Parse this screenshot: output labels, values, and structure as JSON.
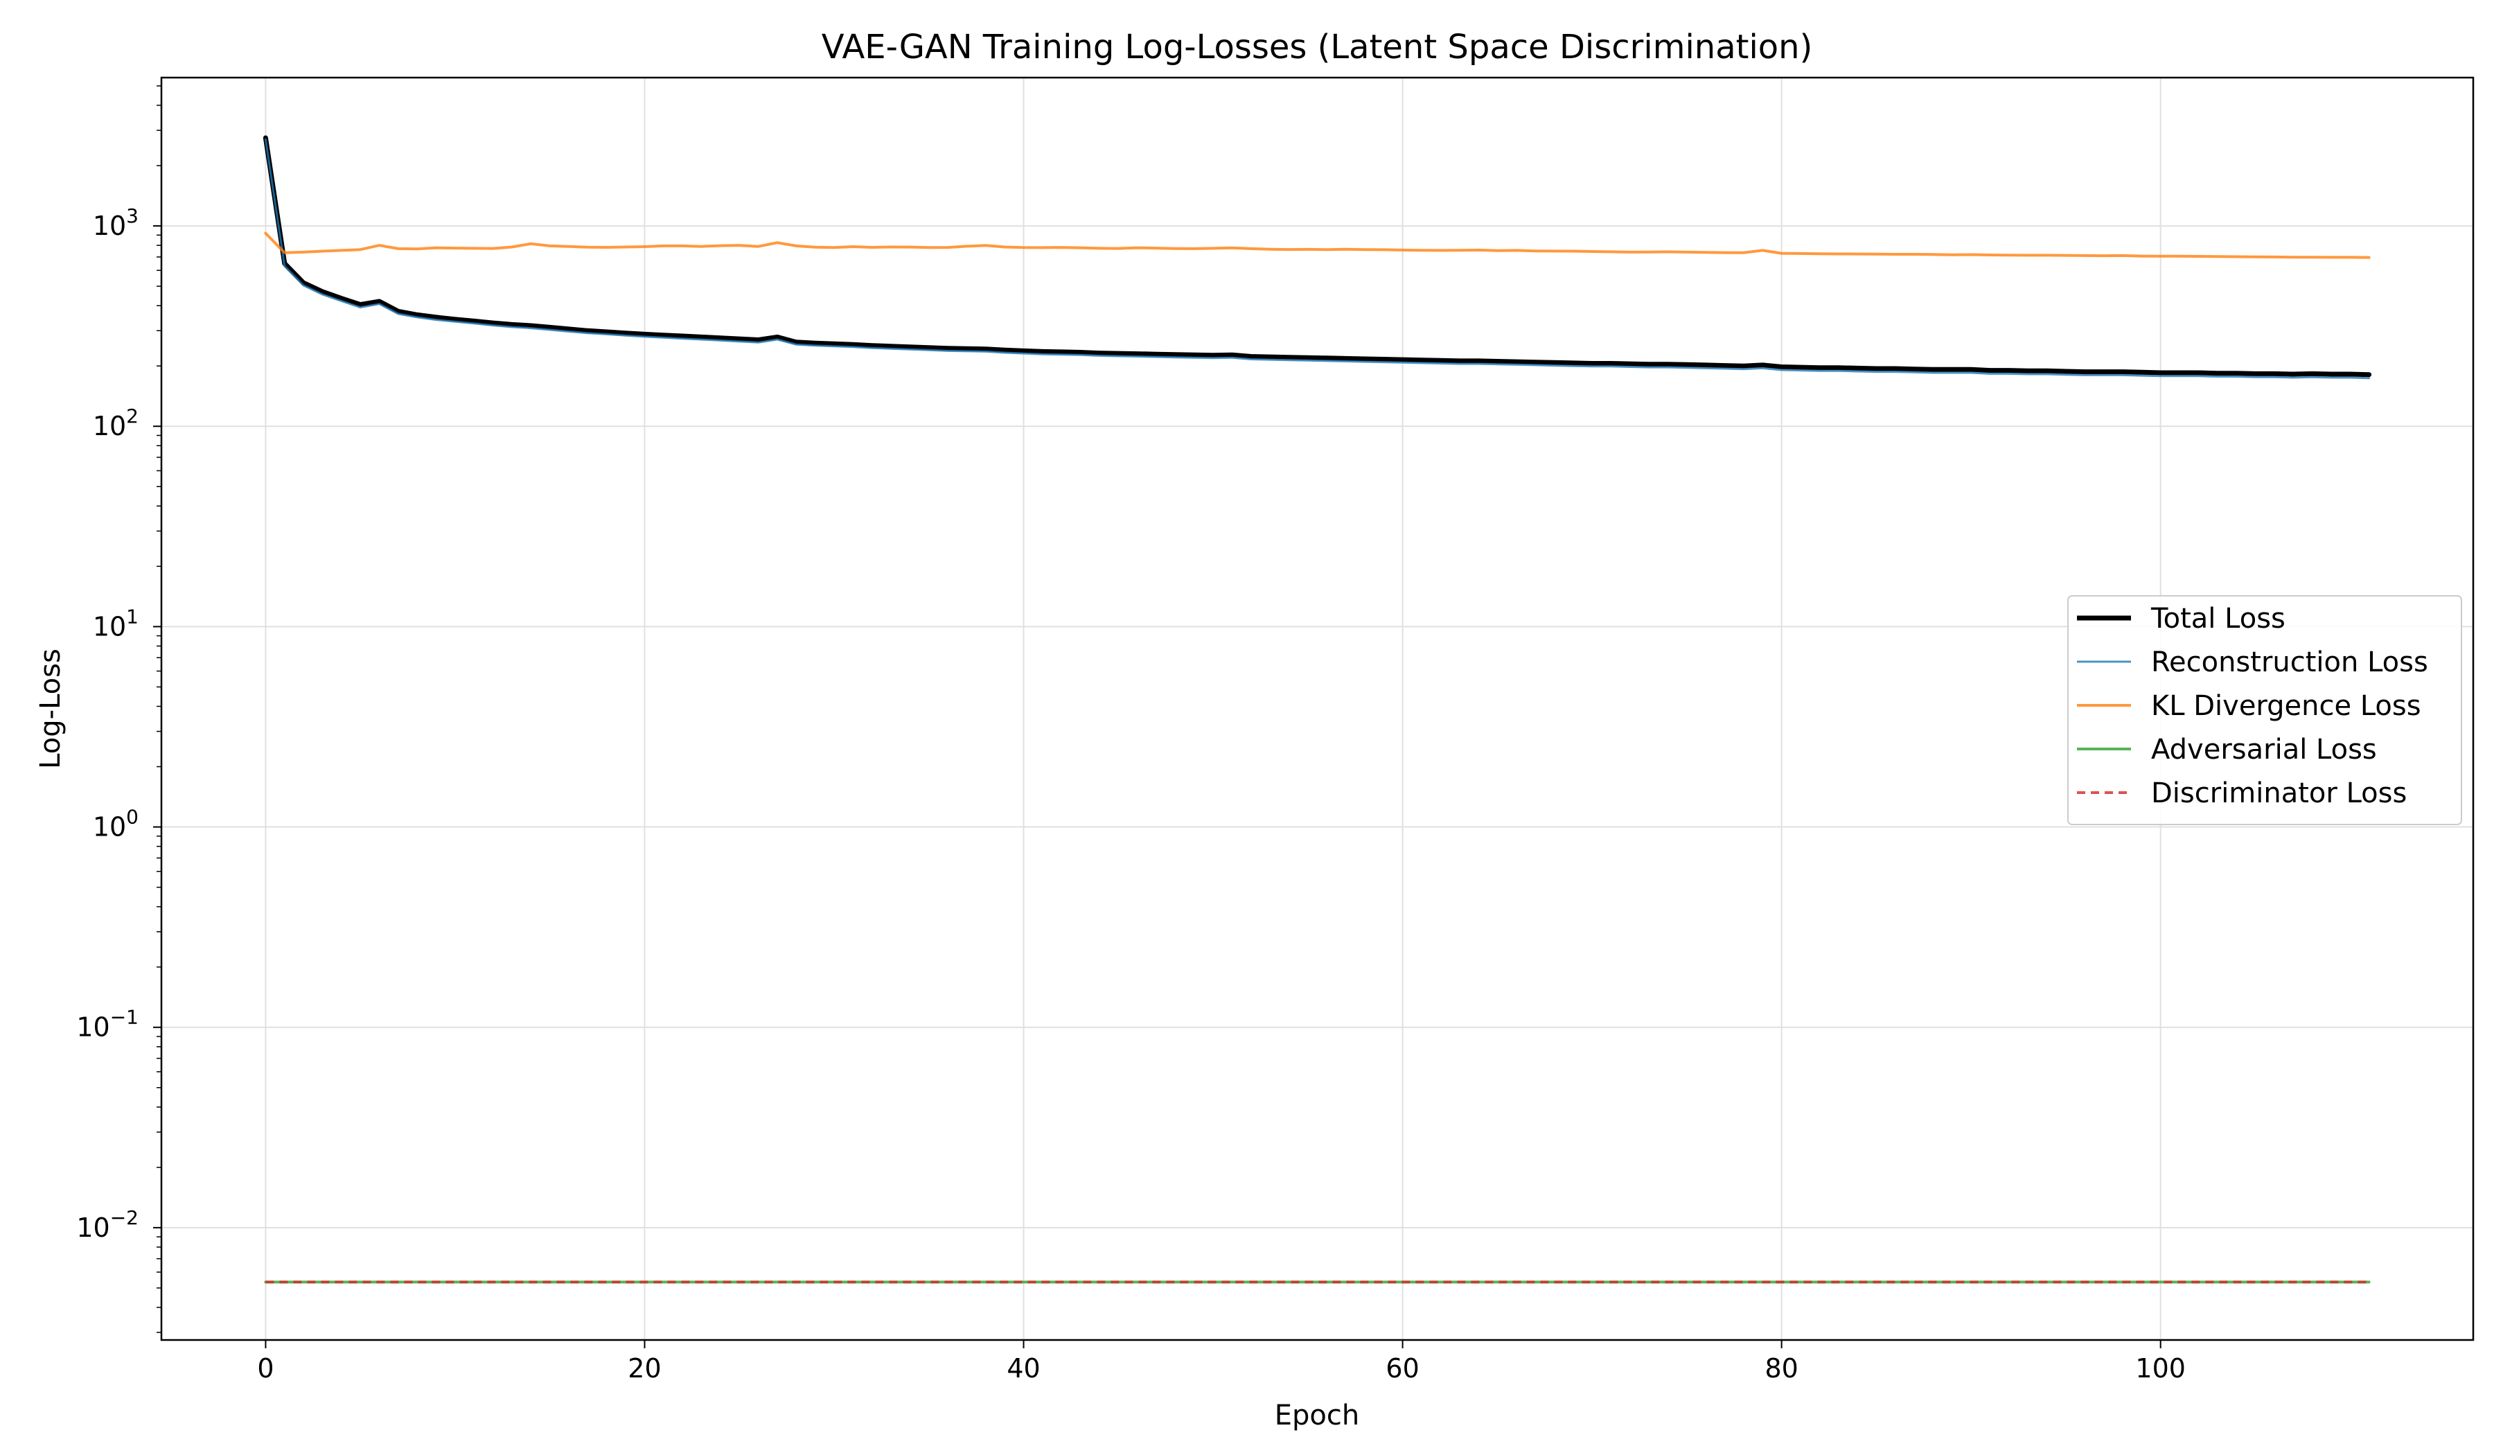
{
  "chart_data": {
    "type": "line",
    "title": "VAE-GAN Training Log-Losses (Latent Space Discrimination)",
    "xlabel": "Epoch",
    "ylabel": "Log-Loss",
    "yscale": "log",
    "xlim": [
      -5.5,
      116.5
    ],
    "ylim": [
      0.00275,
      5500
    ],
    "grid": true,
    "legend_position": "center-right",
    "x_ticks": [
      0,
      20,
      40,
      60,
      80,
      100
    ],
    "y_ticks": [
      0.01,
      0.1,
      1,
      10,
      100,
      1000
    ],
    "y_tick_labels": [
      {
        "base": "10",
        "exp": "−2"
      },
      {
        "base": "10",
        "exp": "−1"
      },
      {
        "base": "10",
        "exp": "0"
      },
      {
        "base": "10",
        "exp": "1"
      },
      {
        "base": "10",
        "exp": "2"
      },
      {
        "base": "10",
        "exp": "3"
      }
    ],
    "epochs": 112,
    "series": [
      {
        "name": "Total Loss",
        "color": "#000000",
        "style": "solid-thick",
        "values": [
          2750,
          650,
          520,
          470,
          435,
          405,
          420,
          375,
          360,
          350,
          342,
          335,
          328,
          322,
          318,
          312,
          306,
          300,
          296,
          292,
          288,
          285,
          282,
          279,
          276,
          273,
          270,
          279,
          263,
          260,
          258,
          256,
          253,
          251,
          249,
          247,
          245,
          244,
          243,
          240,
          238,
          236,
          235,
          234,
          232,
          231,
          230,
          229,
          228,
          227,
          226,
          227,
          223,
          222,
          221,
          220,
          219,
          218,
          217,
          216,
          215,
          214,
          213,
          212,
          212,
          211,
          210,
          209,
          208,
          207,
          206,
          206,
          205,
          204,
          204,
          203,
          202,
          201,
          200,
          202,
          198,
          197,
          196,
          196,
          195,
          194,
          194,
          193,
          192,
          192,
          192,
          190,
          190,
          189,
          189,
          188,
          187,
          187,
          187,
          186,
          185,
          185,
          185,
          184,
          184,
          183,
          183,
          182,
          183,
          182,
          182,
          181
        ]
      },
      {
        "name": "Reconstruction Loss",
        "color": "#1f77b4",
        "style": "solid",
        "values": [
          2700,
          630,
          505,
          455,
          422,
          392,
          408,
          364,
          350,
          340,
          333,
          326,
          319,
          313,
          309,
          303,
          297,
          292,
          288,
          284,
          280,
          277,
          274,
          271,
          268,
          265,
          262,
          271,
          256,
          253,
          251,
          249,
          246,
          244,
          242,
          240,
          238,
          237,
          236,
          233,
          231,
          229,
          228,
          227,
          225,
          224,
          223,
          222,
          221,
          220,
          219,
          220,
          216,
          215,
          214,
          213,
          212,
          211,
          210,
          209,
          208,
          207,
          206,
          205,
          205,
          204,
          203,
          202,
          201,
          200,
          199,
          199,
          198,
          197,
          197,
          196,
          195,
          194,
          193,
          195,
          191,
          190,
          189,
          189,
          188,
          187,
          187,
          186,
          185,
          185,
          185,
          183,
          183,
          182,
          182,
          181,
          180,
          180,
          180,
          179,
          178,
          178,
          178,
          177,
          177,
          176,
          176,
          175,
          176,
          175,
          175,
          174
        ]
      },
      {
        "name": "KL Divergence Loss",
        "color": "#ff7f0e",
        "style": "solid",
        "values": [
          920,
          735,
          740,
          748,
          755,
          762,
          800,
          770,
          768,
          778,
          775,
          773,
          772,
          785,
          815,
          795,
          790,
          783,
          782,
          785,
          788,
          795,
          795,
          790,
          797,
          800,
          790,
          825,
          795,
          783,
          780,
          788,
          782,
          785,
          784,
          780,
          781,
          792,
          799,
          785,
          780,
          779,
          781,
          778,
          773,
          772,
          778,
          775,
          771,
          770,
          773,
          777,
          770,
          765,
          763,
          764,
          762,
          765,
          762,
          761,
          758,
          756,
          755,
          756,
          758,
          753,
          755,
          750,
          749,
          748,
          745,
          743,
          740,
          741,
          743,
          740,
          738,
          736,
          735,
          755,
          730,
          728,
          726,
          725,
          724,
          723,
          722,
          722,
          720,
          718,
          719,
          716,
          715,
          714,
          714,
          713,
          711,
          710,
          711,
          707,
          706,
          706,
          705,
          703,
          702,
          701,
          700,
          698,
          698,
          697,
          697,
          696
        ]
      },
      {
        "name": "Adversarial Loss",
        "color": "#2ca02c",
        "style": "solid",
        "constant": 0.00535
      },
      {
        "name": "Discriminator Loss",
        "color": "#d62728",
        "style": "dashed",
        "constant": 0.00535
      }
    ]
  }
}
